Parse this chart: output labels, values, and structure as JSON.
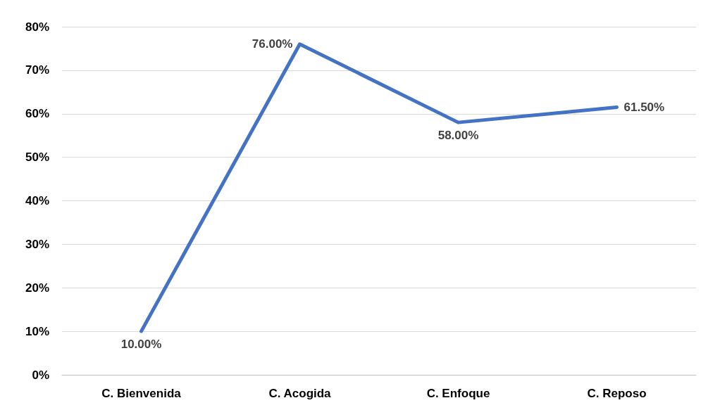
{
  "chart_data": {
    "type": "line",
    "categories": [
      "C. Bienvenida",
      "C. Acogida",
      "C. Enfoque",
      "C. Reposo"
    ],
    "series": [
      {
        "color": "#4472c4",
        "values": [
          10,
          76,
          58,
          61.5
        ],
        "value_labels": [
          "10.00%",
          "76.00%",
          "58.00%",
          "61.50%"
        ]
      }
    ],
    "ylim": [
      0,
      80
    ],
    "yticks": [
      {
        "value": 0,
        "label": "0%"
      },
      {
        "value": 10,
        "label": "10%"
      },
      {
        "value": 20,
        "label": "20%"
      },
      {
        "value": 30,
        "label": "30%"
      },
      {
        "value": 40,
        "label": "40%"
      },
      {
        "value": 50,
        "label": "50%"
      },
      {
        "value": 60,
        "label": "60%"
      },
      {
        "value": 70,
        "label": "70%"
      },
      {
        "value": 80,
        "label": "80%"
      }
    ],
    "grid": "y",
    "marker": "none",
    "line_style": "solid"
  }
}
